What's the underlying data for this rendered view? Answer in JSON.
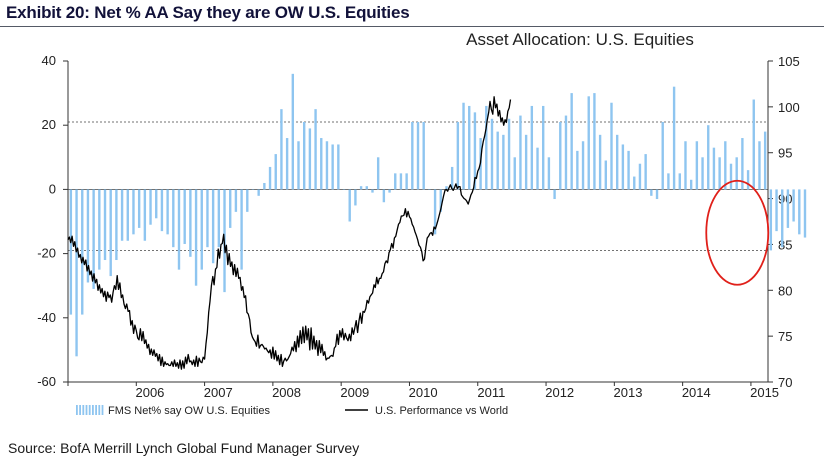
{
  "exhibit_title": "Exhibit 20: Net % AA Say they are OW U.S. Equities",
  "source": "Source: BofA Merrill Lynch Global Fund Manager Survey",
  "colors": {
    "bars": "#8ec5f0",
    "line": "#000000",
    "circle": "#e0201a",
    "dashed": "#444444",
    "title": "#12123a"
  },
  "chart_data": {
    "type": "bar+line",
    "title": "Asset Allocation: U.S. Equities",
    "y_left": {
      "min": -60,
      "max": 40,
      "ticks": [
        40,
        20,
        0,
        -20,
        -40,
        -60
      ]
    },
    "y_right": {
      "min": 70,
      "max": 105,
      "ticks": [
        105,
        100,
        95,
        90,
        85,
        80,
        75,
        70
      ]
    },
    "x_range": [
      2005.0,
      2015.25
    ],
    "x_ticks": [
      {
        "label": "2006",
        "pos": 2006.2
      },
      {
        "label": "2007",
        "pos": 2007.2
      },
      {
        "label": "2008",
        "pos": 2008.2
      },
      {
        "label": "2009",
        "pos": 2009.2
      },
      {
        "label": "2010",
        "pos": 2010.2
      },
      {
        "label": "2011",
        "pos": 2011.2
      },
      {
        "label": "2012",
        "pos": 2012.2
      },
      {
        "label": "2013",
        "pos": 2013.2
      },
      {
        "label": "2014",
        "pos": 2014.2
      },
      {
        "label": "2015",
        "pos": 2015.2
      }
    ],
    "reference_lines_left": [
      21,
      -19
    ],
    "series": [
      {
        "name": "FMS Net% say OW U.S. Equities",
        "type": "bar",
        "axis": "left",
        "x_start": 2005.042,
        "x_step": 0.08333,
        "values": [
          -39,
          -52,
          -39,
          -29,
          -31,
          -25,
          -22,
          -27,
          -22,
          -16,
          -16,
          -14,
          -12,
          -16,
          -11,
          -9,
          -13,
          -14,
          -18,
          -25,
          -17,
          -21,
          -30,
          -25,
          -18,
          -23,
          -18,
          -32,
          -12,
          -7,
          -25,
          -7,
          0,
          -2,
          2,
          7,
          11,
          25,
          16,
          36,
          15,
          21,
          19,
          25,
          16,
          15,
          14,
          14,
          0,
          -10,
          -5,
          1,
          1,
          -1,
          10,
          -4,
          -1,
          5,
          5,
          5,
          21,
          21,
          21,
          0,
          -14,
          -7,
          1,
          7,
          21,
          27,
          26,
          24,
          16,
          26,
          22,
          18,
          17,
          22,
          10,
          23,
          17,
          26,
          13,
          26,
          10,
          -3,
          21,
          23,
          30,
          12,
          15,
          29,
          30,
          17,
          9,
          27,
          17,
          14,
          12,
          4,
          8,
          11,
          -2,
          -3,
          21,
          5,
          32,
          5,
          15,
          3,
          15,
          10,
          20,
          13,
          10,
          15,
          8,
          10,
          16,
          6,
          28,
          15,
          18,
          -19,
          -13,
          -18,
          -12,
          -10,
          -14,
          -15
        ]
      },
      {
        "name": "U.S. Performance vs World",
        "type": "line",
        "axis": "right",
        "x_step": 0.02,
        "values": [
          85.5,
          85.8,
          85.2,
          85.9,
          84.8,
          85.3,
          84.2,
          84.6,
          83.6,
          83.9,
          83.0,
          83.6,
          82.8,
          83.3,
          82.1,
          82.7,
          81.7,
          82.1,
          81.0,
          81.8,
          80.8,
          81.2,
          80.0,
          80.6,
          79.7,
          80.2,
          79.3,
          79.9,
          78.8,
          79.8,
          79.2,
          79.5,
          78.7,
          79.8,
          80.5,
          80.1,
          81.6,
          80.1,
          80.8,
          79.2,
          79.5,
          78.5,
          78.0,
          78.5,
          77.7,
          77.8,
          76.2,
          76.7,
          75.3,
          76.2,
          75.6,
          74.8,
          74.6,
          75.8,
          74.5,
          75.5,
          74.2,
          74.6,
          73.7,
          74.1,
          73.0,
          73.6,
          72.9,
          73.5,
          72.8,
          73.1,
          72.3,
          73.0,
          71.8,
          72.7,
          71.7,
          72.2,
          71.9,
          72.0,
          71.8,
          71.8,
          72.2,
          71.7,
          72.4,
          71.7,
          72.1,
          71.5,
          72.4,
          71.4,
          72.3,
          71.5,
          72.7,
          72.0,
          73.0,
          72.2,
          72.3,
          71.9,
          72.4,
          71.7,
          72.8,
          71.7,
          72.6,
          72.2,
          72.1,
          72.7,
          72.5,
          74.2,
          75.4,
          77.6,
          78.8,
          80.5,
          81.5,
          80.6,
          82.3,
          82.5,
          84.5,
          83.5,
          85.0,
          85.1,
          86.1,
          84.1,
          84.9,
          82.8,
          84.0,
          82.6,
          83.1,
          81.7,
          82.8,
          81.5,
          82.4,
          81.3,
          81.4,
          80.0,
          80.4,
          79.2,
          79.4,
          77.6,
          77.4,
          76.8,
          75.4,
          74.9,
          74.6,
          74.4,
          73.9,
          75.1,
          73.7,
          74.0,
          74.1,
          73.9,
          73.6,
          73.7,
          73.4,
          73.2,
          73.5,
          72.6,
          73.8,
          72.5,
          73.4,
          72.3,
          72.9,
          71.9,
          73.0,
          71.7,
          72.3,
          72.6,
          72.3,
          72.5,
          72.8,
          73.1,
          73.8,
          73.4,
          74.4,
          73.3,
          75.0,
          73.8,
          75.6,
          74.2,
          76.0,
          74.3,
          76.1,
          74.6,
          75.8,
          73.5,
          75.9,
          73.6,
          75.0,
          73.6,
          74.5,
          72.9,
          74.5,
          73.2,
          74.1,
          72.9,
          73.3,
          72.4,
          72.6,
          72.6,
          72.8,
          72.9,
          72.8,
          73.7,
          73.9,
          75.2,
          74.1,
          75.6,
          74.9,
          75.8,
          74.6,
          75.3,
          74.8,
          74.5,
          75.2,
          74.5,
          75.9,
          75.2,
          75.9,
          76.7,
          75.4,
          76.6,
          77.5,
          76.4,
          77.7,
          77.6,
          78.0,
          78.9,
          78.6,
          79.3,
          79.5,
          79.7,
          80.6,
          80.3,
          81.4,
          80.7,
          81.3,
          81.3,
          81.8,
          82.0,
          82.9,
          83.2,
          83.0,
          84.1,
          84.4,
          85.1,
          84.6,
          85.7,
          85.9,
          86.6,
          87.2,
          87.4,
          88.1,
          88.1,
          88.2,
          88.9,
          88.0,
          88.6,
          88.0,
          87.8,
          87.2,
          86.9,
          86.4,
          86.0,
          85.5,
          84.9,
          84.7,
          84.2,
          83.2,
          83.4,
          84.7,
          85.7,
          85.9,
          86.2,
          86.3,
          86.0,
          86.9,
          86.7,
          87.2,
          87.7,
          88.3,
          88.9,
          89.6,
          90.3,
          90.9,
          91.0,
          90.8,
          91.2,
          91.5,
          91.1,
          90.9,
          91.2,
          91.6,
          91.1,
          91.3,
          91.3,
          90.4,
          90.2,
          90.0,
          89.9,
          89.7,
          89.4,
          89.9,
          90.4,
          90.7,
          91.2,
          92.3,
          92.2,
          93.0,
          93.3,
          93.9,
          95.4,
          96.2,
          96.8,
          97.6,
          98.6,
          99.4,
          100.6,
          99.7,
          99.2,
          101.1,
          99.9,
          100.3,
          99.0,
          99.6,
          98.4,
          98.8,
          98.0,
          98.6,
          98.3,
          99.5,
          99.9,
          100.8
        ]
      }
    ],
    "annotation": "red circle highlighting recent negative readings (mid-2014 to early 2015)"
  }
}
